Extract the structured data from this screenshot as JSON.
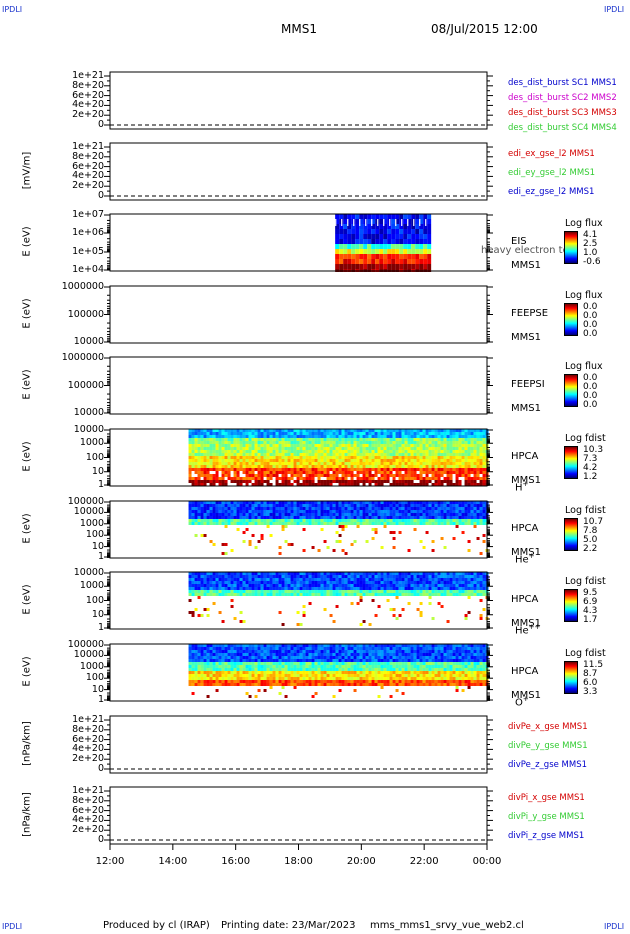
{
  "corner_label": "IPDLI",
  "header": {
    "title": "MMS1",
    "datetime": "08/Jul/2015 12:00"
  },
  "x_axis": {
    "ticks": [
      "12:00",
      "14:00",
      "16:00",
      "18:00",
      "20:00",
      "22:00",
      "00:00"
    ]
  },
  "footer": {
    "produced": "Produced by cl (IRAP)",
    "printed": "Printing date: 23/Mar/2023",
    "script": "mms_mms1_srvy_vue_web2.cl"
  },
  "colors": {
    "red": "#d40000",
    "green": "#33cc33",
    "blue": "#0000cc",
    "magenta": "#cc00cc"
  },
  "chart_data": [
    {
      "type": "line",
      "ylabel": "",
      "yticks": [
        "1e+21",
        "8e+20",
        "6e+20",
        "4e+20",
        "2e+20",
        "0"
      ],
      "ylim": [
        0,
        1e+21
      ],
      "series": [
        {
          "name": "des_dist_burst SC1 MMS1",
          "color": "#0000cc"
        },
        {
          "name": "des_dist_burst SC2 MMS2",
          "color": "#cc00cc"
        },
        {
          "name": "des_dist_burst SC3 MMS3",
          "color": "#d40000"
        },
        {
          "name": "des_dist_burst SC4 MMS4",
          "color": "#33cc33"
        }
      ],
      "zero_line": true
    },
    {
      "type": "line",
      "ylabel": "[mV/m]",
      "yticks": [
        "1e+21",
        "8e+20",
        "6e+20",
        "4e+20",
        "2e+20",
        "0"
      ],
      "ylim": [
        0,
        1e+21
      ],
      "series": [
        {
          "name": "edi_ex_gse_l2 MMS1",
          "color": "#d40000"
        },
        {
          "name": "edi_ey_gse_l2 MMS1",
          "color": "#33cc33"
        },
        {
          "name": "edi_ez_gse_l2 MMS1",
          "color": "#0000cc"
        }
      ],
      "zero_line": true
    },
    {
      "type": "heatmap",
      "ylabel": "E (eV)",
      "yticks": [
        "1e+07",
        "1e+06",
        "1e+05",
        "1e+04"
      ],
      "ylim": [
        10000.0,
        10000000.0
      ],
      "log_scale": true,
      "right_text": [
        "EIS",
        "MMS1"
      ],
      "overlay_text": "heavy electron to",
      "colorbar": {
        "title": "Log flux",
        "labels": [
          "4.1",
          "2.5",
          "1.0",
          "-0.6"
        ]
      },
      "data_span": {
        "start": "19:10",
        "end": "22:10"
      }
    },
    {
      "type": "heatmap",
      "ylabel": "E (eV)",
      "yticks": [
        "1000000",
        "100000",
        "10000"
      ],
      "ylim": [
        10000.0,
        1000000.0
      ],
      "log_scale": true,
      "right_text": [
        "FEEPSE",
        "MMS1"
      ],
      "colorbar": {
        "title": "Log flux",
        "labels": [
          "0.0",
          "0.0",
          "0.0",
          "0.0"
        ]
      }
    },
    {
      "type": "heatmap",
      "ylabel": "E (eV)",
      "yticks": [
        "1000000",
        "100000",
        "10000"
      ],
      "ylim": [
        10000.0,
        1000000.0
      ],
      "log_scale": true,
      "right_text": [
        "FEEPSI",
        "MMS1"
      ],
      "colorbar": {
        "title": "Log flux",
        "labels": [
          "0.0",
          "0.0",
          "0.0",
          "0.0"
        ]
      }
    },
    {
      "type": "heatmap",
      "ylabel": "E (eV)",
      "yticks": [
        "10000",
        "1000",
        "100",
        "10",
        "1"
      ],
      "ylim": [
        1,
        40000
      ],
      "log_scale": true,
      "right_text": [
        "HPCA",
        "MMS1"
      ],
      "species": "H",
      "species_sup": "+",
      "colorbar": {
        "title": "Log fdist",
        "labels": [
          "10.3",
          "7.3",
          "4.2",
          "1.2"
        ]
      },
      "data_span": {
        "start": "14:30",
        "end": "00:00"
      }
    },
    {
      "type": "heatmap",
      "ylabel": "E (eV)",
      "yticks": [
        "100000",
        "10000",
        "1000",
        "100",
        "10",
        "1"
      ],
      "ylim": [
        1,
        100000.0
      ],
      "log_scale": true,
      "right_text": [
        "HPCA",
        "MMS1"
      ],
      "species": "He",
      "species_sup": "+",
      "colorbar": {
        "title": "Log fdist",
        "labels": [
          "10.7",
          "7.8",
          "5.0",
          "2.2"
        ]
      },
      "data_span": {
        "start": "14:30",
        "end": "00:00"
      }
    },
    {
      "type": "heatmap",
      "ylabel": "E (eV)",
      "yticks": [
        "10000",
        "1000",
        "100",
        "10",
        "1"
      ],
      "ylim": [
        1,
        40000
      ],
      "log_scale": true,
      "right_text": [
        "HPCA",
        "MMS1"
      ],
      "species": "He",
      "species_sup": "++",
      "colorbar": {
        "title": "Log fdist",
        "labels": [
          "9.5",
          "6.9",
          "4.3",
          "1.7"
        ]
      },
      "data_span": {
        "start": "14:30",
        "end": "00:00"
      }
    },
    {
      "type": "heatmap",
      "ylabel": "E (eV)",
      "yticks": [
        "100000",
        "10000",
        "1000",
        "100",
        "10",
        "1"
      ],
      "ylim": [
        1,
        100000.0
      ],
      "log_scale": true,
      "right_text": [
        "HPCA",
        "MMS1"
      ],
      "species": "O",
      "species_sup": "+",
      "colorbar": {
        "title": "Log fdist",
        "labels": [
          "11.5",
          "8.7",
          "6.0",
          "3.3"
        ]
      },
      "data_span": {
        "start": "14:30",
        "end": "00:00"
      }
    },
    {
      "type": "line",
      "ylabel": "[nPa/km]",
      "yticks": [
        "1e+21",
        "8e+20",
        "6e+20",
        "4e+20",
        "2e+20",
        "0"
      ],
      "ylim": [
        0,
        1e+21
      ],
      "series": [
        {
          "name": "divPe_x_gse MMS1",
          "color": "#d40000"
        },
        {
          "name": "divPe_y_gse MMS1",
          "color": "#33cc33"
        },
        {
          "name": "divPe_z_gse MMS1",
          "color": "#0000cc"
        }
      ],
      "zero_line": true
    },
    {
      "type": "line",
      "ylabel": "[nPa/km]",
      "yticks": [
        "1e+21",
        "8e+20",
        "6e+20",
        "4e+20",
        "2e+20",
        "0"
      ],
      "ylim": [
        0,
        1e+21
      ],
      "series": [
        {
          "name": "divPi_x_gse MMS1",
          "color": "#d40000"
        },
        {
          "name": "divPi_y_gse MMS1",
          "color": "#33cc33"
        },
        {
          "name": "divPi_z_gse MMS1",
          "color": "#0000cc"
        }
      ],
      "zero_line": true
    }
  ]
}
